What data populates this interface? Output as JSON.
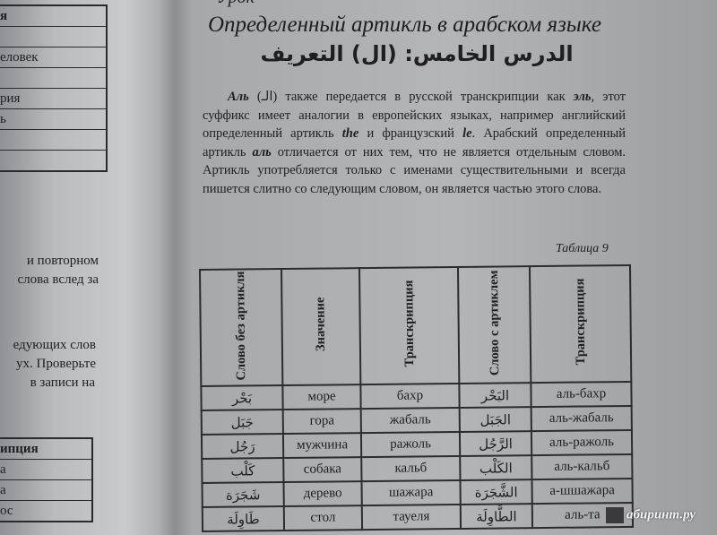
{
  "left_page": {
    "table_top": [
      "я",
      "",
      "еловек",
      "",
      "рия",
      "ь",
      "",
      ""
    ],
    "paragraph1": [
      "и   повторном",
      "слова вслед за"
    ],
    "paragraph2": [
      "едующих слов",
      "ух. Проверьте",
      "в записи на"
    ],
    "table_bottom": [
      "ипция",
      "а",
      "а",
      "ос"
    ]
  },
  "right_page": {
    "lesson_partial": "Урок",
    "title": "Определенный артикль в арабском языке",
    "arabic_title": "الدرس الخامس: (ال) التعريف",
    "paragraph": {
      "intro_bold": "Аль",
      "intro_arabic": "(الـ)",
      "text1": " также передается в русской транскрипции как ",
      "bold2": "эль",
      "text2": ", этот суффикс имеет аналогии в европейских языках, например английский определенный артикль ",
      "bold3": "the",
      "text3": " и французский ",
      "bold4": "le",
      "text4": ". Арабский определенный артикль ",
      "bold5": "аль",
      "text5": " отличается от них тем, что не является отдельным словом. Артикль употребляется только с именами существительными и всегда пишется слитно со следующим словом, он является частью этого слова."
    },
    "table_caption": "Таблица 9",
    "table": {
      "headers": [
        "Слово без артикля",
        "Значение",
        "Транскрипция",
        "Слово с артиклем",
        "Транскрипция"
      ],
      "rows": [
        [
          "بَحْر",
          "море",
          "бахр",
          "البَحْر",
          "аль-бахр"
        ],
        [
          "جَبَل",
          "гора",
          "жабаль",
          "الجَبَل",
          "аль-жабаль"
        ],
        [
          "رَجُل",
          "мужчина",
          "ражоль",
          "الرَّجُل",
          "аль-ражоль"
        ],
        [
          "كَلْب",
          "собака",
          "кальб",
          "الكَلْب",
          "аль-кальб"
        ],
        [
          "شَجَرَة",
          "дерево",
          "шажара",
          "الشَّجَرَة",
          "а-шшажара"
        ],
        [
          "طَاوِلَة",
          "стол",
          "тауеля",
          "الطَّاوِلَة",
          "аль-та"
        ]
      ]
    }
  },
  "watermark": "абиринт.ру"
}
